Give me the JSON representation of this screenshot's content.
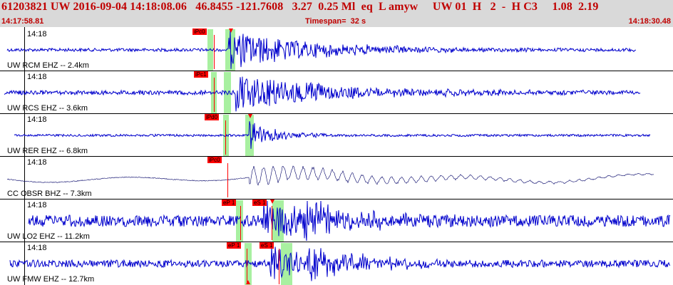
{
  "header": {
    "title": "61203821 UW 2016-09-04 14:18:08.06   46.8455 -121.7608   3.27  0.25 Ml  eq  L amyw     UW 01  H   2  -  H C3     1.08  2.19",
    "start_time": "14:17:58.81",
    "timespan": "Timespan=  32 s",
    "end_time": "14:18:30.48"
  },
  "colors": {
    "trace": "#0000cc",
    "trace_thin": "#000066",
    "pick": "#ff0000",
    "window": "#a8f0a0",
    "header_text": "#c00000"
  },
  "channels": [
    {
      "time_label": "14:18",
      "station_label": "UW RCM EHZ -- 2.4km",
      "picks": [
        "iPc0"
      ],
      "amplitude": 0.8,
      "style": "thick",
      "onset": 0.34,
      "decay": 0.13
    },
    {
      "time_label": "14:18",
      "station_label": "UW RCS EHZ -- 3.6km",
      "picks": [
        "iPc1"
      ],
      "amplitude": 0.7,
      "style": "thick",
      "onset": 0.35,
      "decay": 0.15
    },
    {
      "time_label": "14:18",
      "station_label": "UW RER EHZ -- 6.8km",
      "picks": [
        "iPd0"
      ],
      "amplitude": 0.6,
      "style": "thick",
      "onset": 0.37,
      "decay": 0.04
    },
    {
      "time_label": "14:18",
      "station_label": "CC OBSR BHZ -- 7.3km",
      "picks": [
        "iPc0"
      ],
      "amplitude": 0.6,
      "style": "thin",
      "onset": 0.37,
      "decay": 0.22
    },
    {
      "time_label": "14:18",
      "station_label": "UW LO2 EHZ -- 11.2km",
      "picks": [
        "eP 1",
        "eS 1"
      ],
      "amplitude": 0.9,
      "style": "thick",
      "onset": 0.39,
      "decay": 0.08
    },
    {
      "time_label": "14:18",
      "station_label": "UW FMW EHZ -- 12.7km",
      "picks": [
        "eP 1",
        "eS 1"
      ],
      "amplitude": 0.8,
      "style": "thick",
      "onset": 0.4,
      "decay": 0.08
    }
  ]
}
